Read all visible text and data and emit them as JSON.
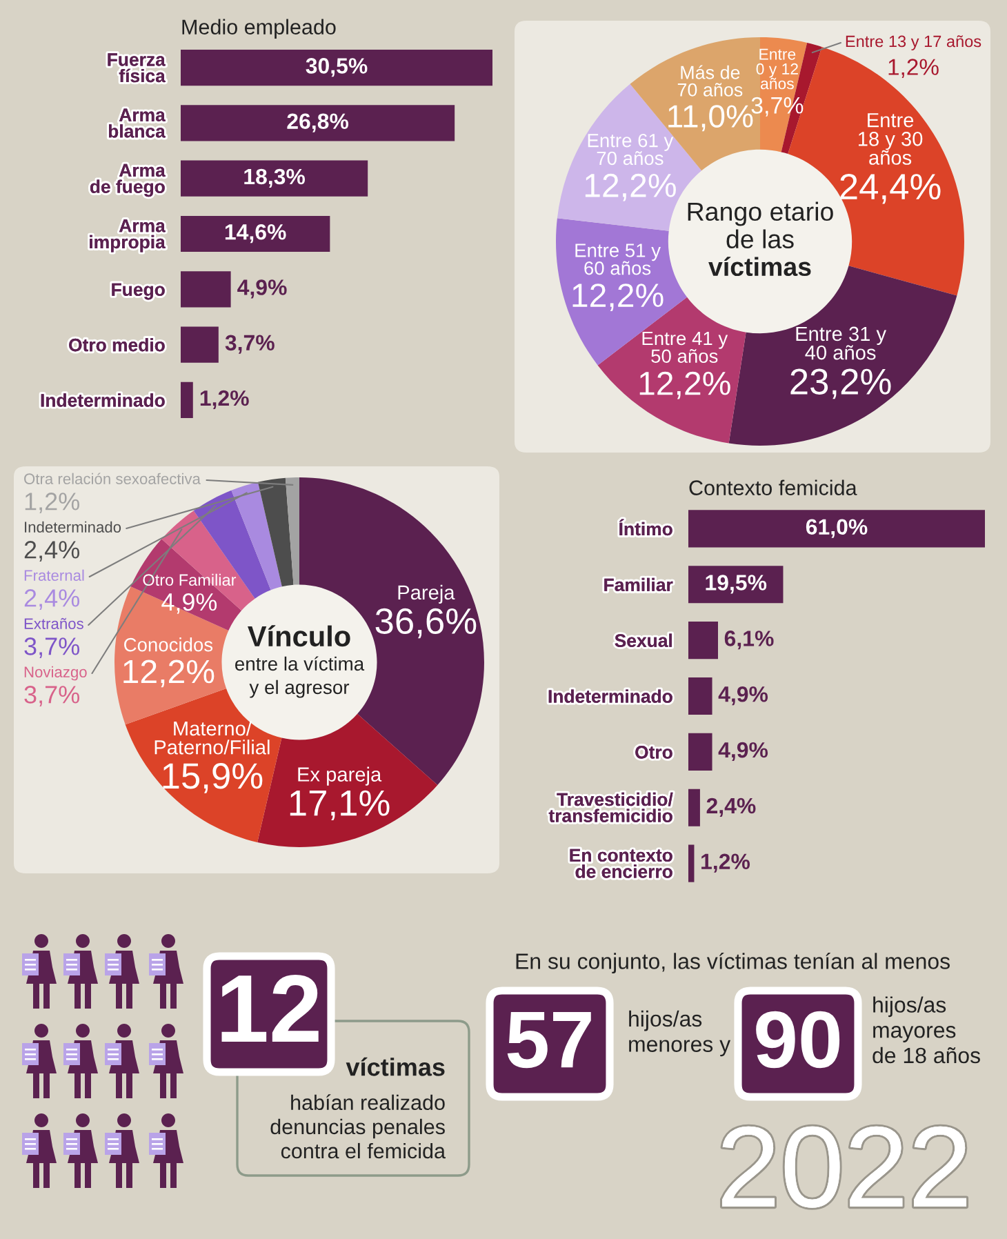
{
  "chart_data": [
    {
      "type": "bar",
      "orientation": "horizontal",
      "title": "Medio empleado",
      "categories": [
        "Fuerza\nfísica",
        "Arma\nblanca",
        "Arma\nde fuego",
        "Arma\nimpropia",
        "Fuego",
        "Otro medio",
        "Indeterminado"
      ],
      "values": [
        30.5,
        26.8,
        18.3,
        14.6,
        4.9,
        3.7,
        1.2
      ],
      "value_labels": [
        "30,5%",
        "26,8%",
        "18,3%",
        "14,6%",
        "4,9%",
        "3,7%",
        "1,2%"
      ],
      "color": "#5b2150"
    },
    {
      "type": "donut",
      "title": "Rango etario\nde las\nvíctimas",
      "categories": [
        "Entre\n0 y 12\naños",
        "Entre 13 y 17 años",
        "Entre\n18 y 30\naños",
        "Entre 31 y\n40 años",
        "Entre 41 y\n50 años",
        "Entre 51 y\n60 años",
        "Entre 61 y\n70 años",
        "Más de\n70 años"
      ],
      "values": [
        3.7,
        1.2,
        24.4,
        23.2,
        12.2,
        12.2,
        12.2,
        11.0
      ],
      "value_labels": [
        "3,7%",
        "1,2%",
        "24,4%",
        "23,2%",
        "12,2%",
        "12,2%",
        "12,2%",
        "11,0%"
      ],
      "colors": [
        "#ec8a4f",
        "#a8182e",
        "#dc4328",
        "#5b2150",
        "#b33a6e",
        "#a277d6",
        "#cdb6ea",
        "#dca56b"
      ]
    },
    {
      "type": "donut",
      "title": "Vínculo",
      "subtitle": "entre la víctima\ny el agresor",
      "categories": [
        "Pareja",
        "Ex pareja",
        "Materno/\nPaterno/Filial",
        "Conocidos",
        "Otro Familiar",
        "Noviazgo",
        "Extraños",
        "Fraternal",
        "Indeterminado",
        "Otra relación sexoafectiva"
      ],
      "values": [
        36.6,
        17.1,
        15.9,
        12.2,
        4.9,
        3.7,
        3.7,
        2.4,
        2.4,
        1.2
      ],
      "value_labels": [
        "36,6%",
        "17,1%",
        "15,9%",
        "12,2%",
        "4,9%",
        "3,7%",
        "3,7%",
        "2,4%",
        "2,4%",
        "1,2%"
      ],
      "colors": [
        "#5b2150",
        "#a8182e",
        "#dc4328",
        "#e97c66",
        "#b33a6e",
        "#d8628a",
        "#7e55c8",
        "#a98ae0",
        "#4d4d4d",
        "#a3a3a3"
      ]
    },
    {
      "type": "bar",
      "orientation": "horizontal",
      "title": "Contexto femicida",
      "categories": [
        "Íntimo",
        "Familiar",
        "Sexual",
        "Indeterminado",
        "Otro",
        "Travesticidio/\ntransfemicidio",
        "En contexto\nde encierro"
      ],
      "values": [
        61.0,
        19.5,
        6.1,
        4.9,
        4.9,
        2.4,
        1.2
      ],
      "value_labels": [
        "61,0%",
        "19,5%",
        "6,1%",
        "4,9%",
        "4,9%",
        "2,4%",
        "1,2%"
      ],
      "color": "#5b2150"
    },
    {
      "type": "other",
      "annotations": [
        "12",
        "víctimas",
        "habían realizado\ndenuncias penales\ncontra el femicida",
        "En su conjunto, las víctimas tenían al menos",
        "57",
        "hijos/as\nmenores y",
        "90",
        "hijos/as\nmayores\nde 18 años",
        "2022"
      ]
    }
  ]
}
